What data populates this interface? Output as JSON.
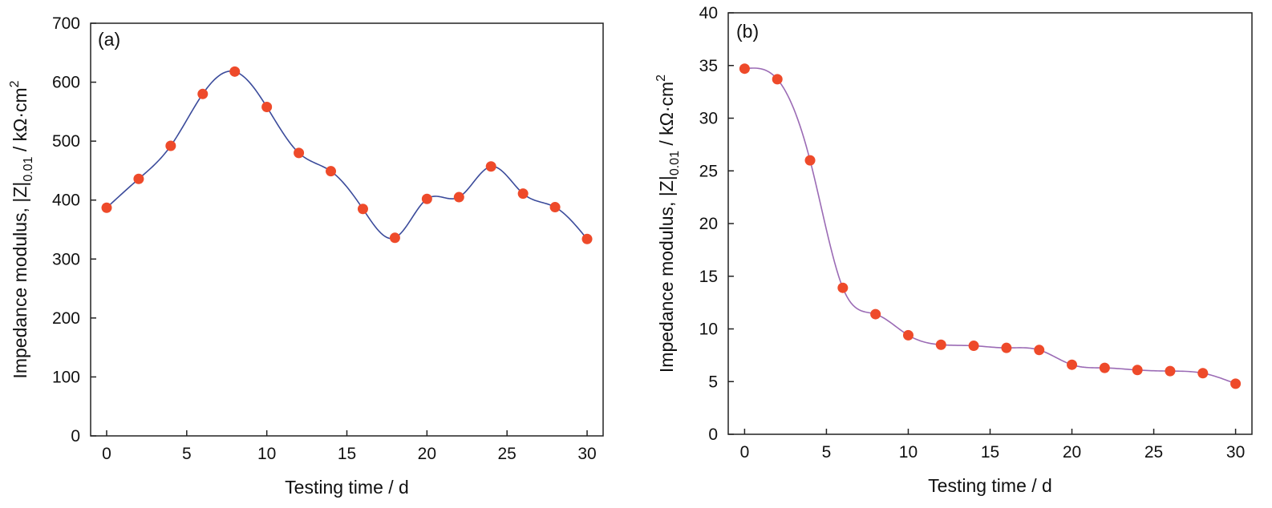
{
  "chart_data": [
    {
      "type": "line",
      "panel_label": "(a)",
      "xlabel": "Testing time / d",
      "ylabel_main": "Impedance modulus, |Z|",
      "ylabel_sub": "0.01",
      "ylabel_unit": " / kΩ·cm",
      "ylabel_sup": "2",
      "xlim": [
        -1,
        31
      ],
      "ylim": [
        0,
        700
      ],
      "xticks": [
        0,
        5,
        10,
        15,
        20,
        25,
        30
      ],
      "yticks": [
        0,
        100,
        200,
        300,
        400,
        500,
        600,
        700
      ],
      "line_color": "#3b4b9b",
      "marker_color": "#ee4a2a",
      "series": [
        {
          "x": [
            0,
            2,
            4,
            6,
            8,
            10,
            12,
            14,
            16,
            18,
            20,
            22,
            24,
            26,
            28,
            30
          ],
          "y": [
            387,
            436,
            492,
            580,
            618,
            558,
            480,
            449,
            385,
            336,
            402,
            405,
            457,
            411,
            388,
            334
          ]
        }
      ]
    },
    {
      "type": "line",
      "panel_label": "(b)",
      "xlabel": "Testing time / d",
      "ylabel_main": "Impedance modulus, |Z|",
      "ylabel_sub": "0.01",
      "ylabel_unit": " / kΩ·cm",
      "ylabel_sup": "2",
      "xlim": [
        -1,
        31
      ],
      "ylim": [
        0,
        40
      ],
      "xticks": [
        0,
        5,
        10,
        15,
        20,
        25,
        30
      ],
      "yticks": [
        0,
        5,
        10,
        15,
        20,
        25,
        30,
        35,
        40
      ],
      "line_color": "#9b6bb5",
      "marker_color": "#ee4a2a",
      "series": [
        {
          "x": [
            0,
            2,
            4,
            6,
            8,
            10,
            12,
            14,
            16,
            18,
            20,
            22,
            24,
            26,
            28,
            30
          ],
          "y": [
            34.7,
            33.7,
            26.0,
            13.9,
            11.4,
            9.4,
            8.5,
            8.4,
            8.2,
            8.0,
            6.6,
            6.3,
            6.1,
            6.0,
            5.8,
            4.8
          ]
        }
      ]
    }
  ]
}
